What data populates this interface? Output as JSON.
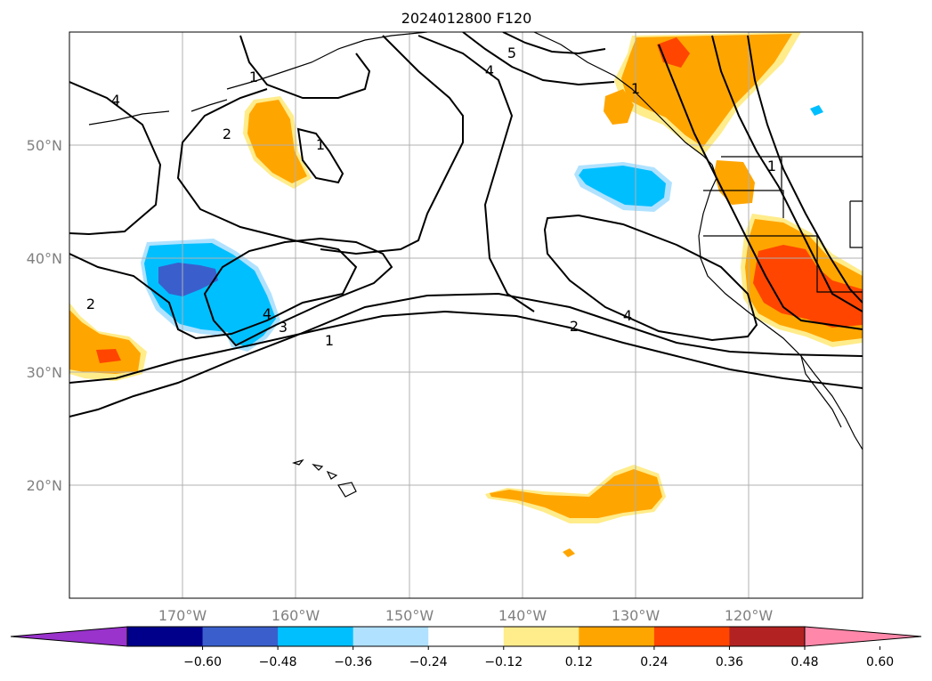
{
  "title": "2024012800 F120",
  "map": {
    "lon_labels": [
      "170°W",
      "160°W",
      "150°W",
      "140°W",
      "130°W",
      "120°W"
    ],
    "lat_labels": [
      "50°N",
      "40°N",
      "30°N",
      "20°N"
    ],
    "contour_labels": [
      "4",
      "2",
      "1",
      "1",
      "5",
      "4",
      "1",
      "2",
      "4",
      "3",
      "1",
      "2",
      "4",
      "1"
    ]
  },
  "colorbar": {
    "colors": [
      "#9933cc",
      "#00008b",
      "#3a5fcd",
      "#00bfff",
      "#b0e2ff",
      "#ffffff",
      "#ffec8b",
      "#ffa500",
      "#ff4500",
      "#b22222",
      "#ff88aa"
    ],
    "tick_labels": [
      "−0.60",
      "−0.48",
      "−0.36",
      "−0.24",
      "−0.12",
      "0.12",
      "0.24",
      "0.36",
      "0.48",
      "0.60"
    ]
  }
}
